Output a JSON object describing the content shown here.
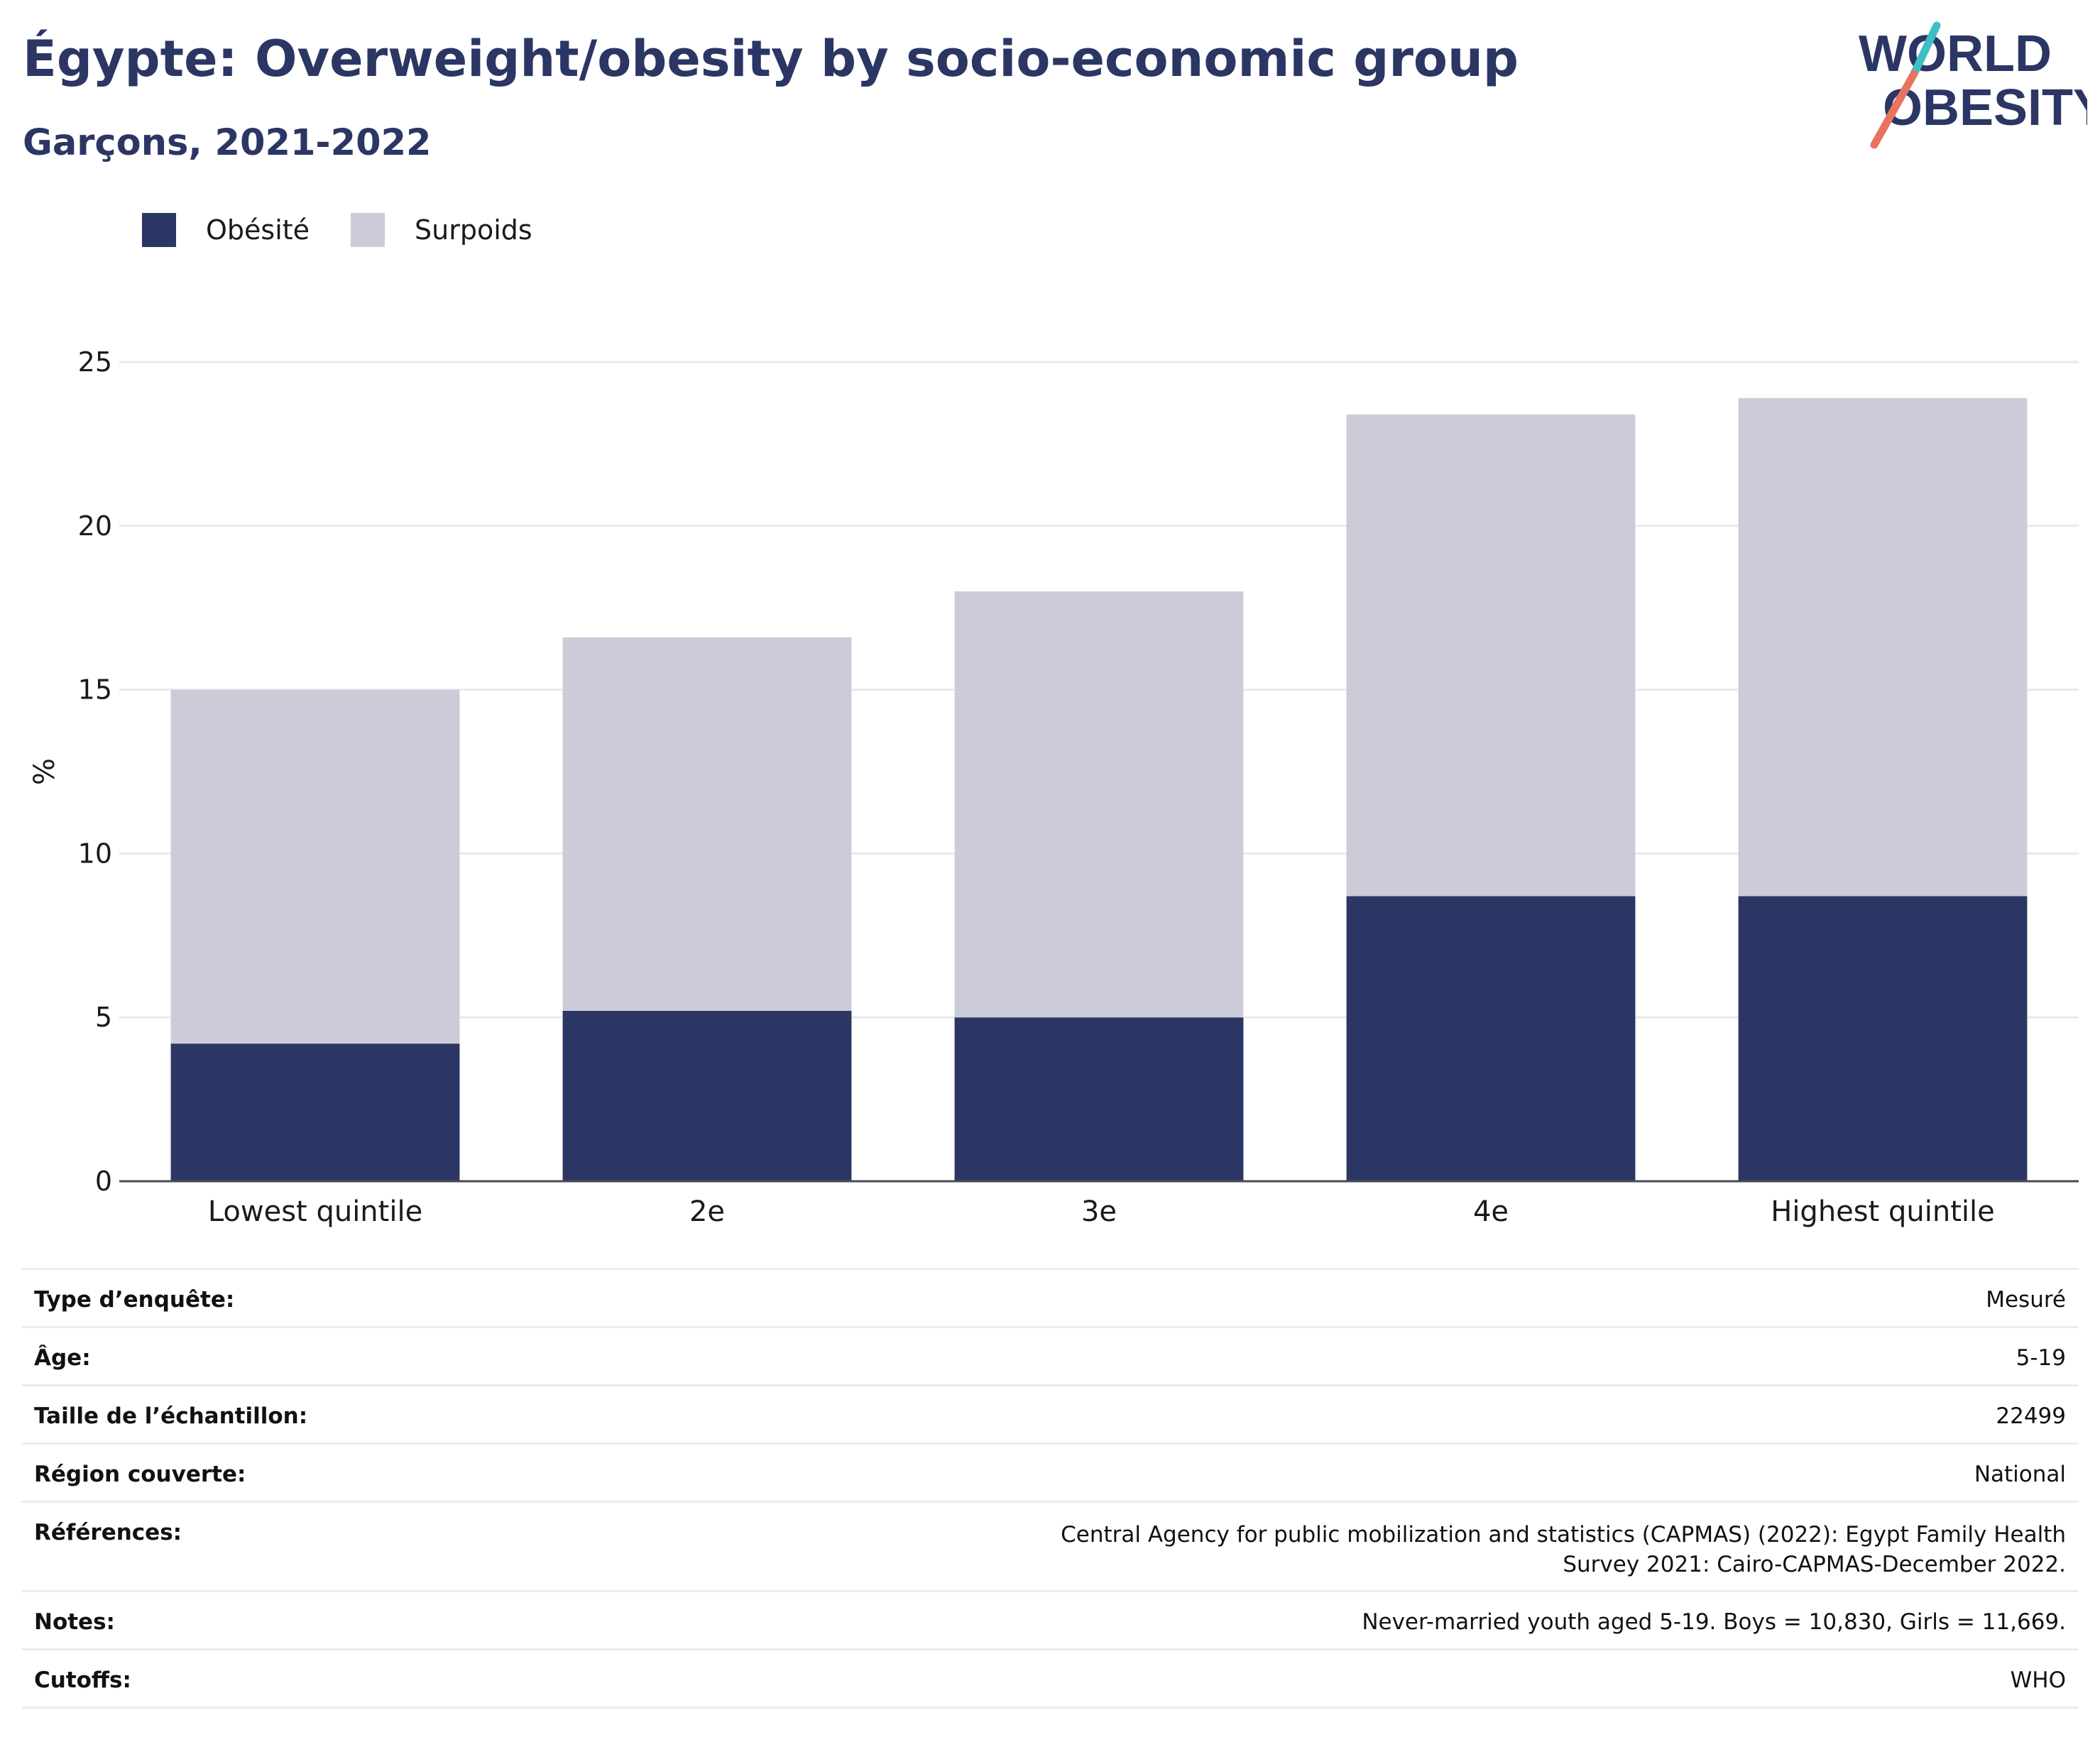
{
  "title": "Égypte: Overweight/obesity by socio-economic group",
  "subtitle": "Garçons, 2021-2022",
  "logo": {
    "line1": "WORLD",
    "line2": "OBESITY"
  },
  "colors": {
    "brand": "#2b3664",
    "obesity": "#2b3664",
    "overweight": "#cbccd8",
    "logo_teal": "#3dbfc3",
    "logo_coral": "#e8735e"
  },
  "legend": [
    {
      "label": "Obésité",
      "color": "#2b3664"
    },
    {
      "label": "Surpoids",
      "color": "#cbccd8"
    }
  ],
  "chart_data": {
    "type": "bar",
    "stacked": true,
    "categories": [
      "Lowest quintile",
      "2e",
      "3e",
      "4e",
      "Highest quintile"
    ],
    "series": [
      {
        "name": "Obésité",
        "values": [
          4.2,
          5.2,
          5.0,
          8.7,
          8.7
        ]
      },
      {
        "name": "Surpoids",
        "values": [
          10.8,
          11.4,
          13.0,
          14.7,
          15.2
        ]
      }
    ],
    "ylabel": "%",
    "xlabel": "",
    "ylim": [
      0,
      25
    ],
    "yticks": [
      0,
      5,
      10,
      15,
      20,
      25
    ],
    "grid": true,
    "legend_position": "top-left"
  },
  "info": [
    {
      "label": "Type d’enquête:",
      "value": "Mesuré"
    },
    {
      "label": "Âge:",
      "value": "5-19"
    },
    {
      "label": "Taille de l’échantillon:",
      "value": "22499"
    },
    {
      "label": "Région couverte:",
      "value": "National"
    },
    {
      "label": "Références:",
      "value": "Central Agency for public mobilization and statistics (CAPMAS) (2022): Egypt Family Health Survey 2021: Cairo-CAPMAS-December 2022."
    },
    {
      "label": "Notes:",
      "value": "Never-married youth aged 5-19. Boys = 10,830, Girls = 11,669."
    },
    {
      "label": "Cutoffs:",
      "value": "WHO"
    }
  ]
}
